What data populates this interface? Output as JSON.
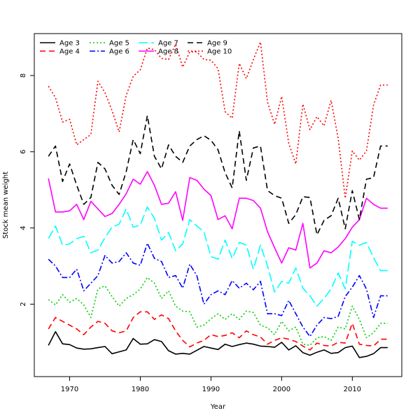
{
  "chart_data": {
    "type": "line",
    "title": "",
    "xlabel": "Year",
    "ylabel": "Stock mean weight",
    "xlim": [
      1965,
      2017
    ],
    "ylim": [
      0.1,
      9.1
    ],
    "x_ticks": [
      1970,
      1980,
      1990,
      2000,
      2010
    ],
    "y_ticks": [
      2,
      4,
      6,
      8
    ],
    "grid": false,
    "legend_position": "top-left",
    "x": [
      1967,
      1968,
      1969,
      1970,
      1971,
      1972,
      1973,
      1974,
      1975,
      1976,
      1977,
      1978,
      1979,
      1980,
      1981,
      1982,
      1983,
      1984,
      1985,
      1986,
      1987,
      1988,
      1989,
      1990,
      1991,
      1992,
      1993,
      1994,
      1995,
      1996,
      1997,
      1998,
      1999,
      2000,
      2001,
      2002,
      2003,
      2004,
      2005,
      2006,
      2007,
      2008,
      2009,
      2010,
      2011,
      2012,
      2013,
      2014,
      2015
    ],
    "series": [
      {
        "name": "Age 3",
        "color": "#000000",
        "dash": "solid",
        "values": [
          0.92,
          1.28,
          0.96,
          0.94,
          0.85,
          0.82,
          0.83,
          0.86,
          0.89,
          0.7,
          0.75,
          0.8,
          1.1,
          0.95,
          0.96,
          1.07,
          1.02,
          0.78,
          0.69,
          0.71,
          0.69,
          0.79,
          0.89,
          0.85,
          0.81,
          0.95,
          0.89,
          0.94,
          0.98,
          0.95,
          0.9,
          0.89,
          0.87,
          1.0,
          0.8,
          0.91,
          0.73,
          0.66,
          0.74,
          0.8,
          0.71,
          0.73,
          0.86,
          0.9,
          0.6,
          0.63,
          0.7,
          0.86,
          0.86
        ]
      },
      {
        "name": "Age 4",
        "color": "#ff0000",
        "dash": "dashed",
        "values": [
          1.35,
          1.65,
          1.55,
          1.45,
          1.35,
          1.2,
          1.4,
          1.55,
          1.5,
          1.3,
          1.25,
          1.3,
          1.65,
          1.8,
          1.8,
          1.6,
          1.72,
          1.62,
          1.3,
          1.05,
          0.88,
          0.98,
          1.05,
          1.2,
          1.15,
          1.18,
          1.25,
          1.12,
          1.3,
          1.2,
          1.14,
          0.95,
          1.05,
          1.12,
          1.08,
          1.02,
          0.9,
          0.8,
          0.98,
          0.92,
          0.9,
          1.0,
          0.98,
          1.5,
          0.95,
          0.92,
          0.9,
          1.08,
          1.08
        ]
      },
      {
        "name": "Age 5",
        "color": "#00cd00",
        "dash": "dotted",
        "values": [
          2.12,
          1.98,
          2.25,
          2.05,
          2.15,
          1.98,
          1.65,
          2.4,
          2.48,
          2.2,
          1.95,
          2.15,
          2.25,
          2.4,
          2.7,
          2.55,
          2.15,
          2.35,
          1.95,
          1.82,
          1.8,
          1.4,
          1.45,
          1.62,
          1.75,
          1.6,
          1.75,
          1.6,
          1.82,
          1.78,
          1.45,
          1.38,
          1.2,
          1.55,
          1.3,
          1.4,
          0.95,
          0.92,
          1.12,
          1.15,
          1.05,
          1.4,
          1.35,
          1.95,
          1.6,
          1.12,
          1.25,
          1.5,
          1.5
        ]
      },
      {
        "name": "Age 6",
        "color": "#0000ff",
        "dash": "dashdot",
        "values": [
          3.18,
          3.0,
          2.7,
          2.7,
          2.92,
          2.35,
          2.55,
          2.75,
          3.28,
          3.08,
          3.12,
          3.35,
          3.08,
          3.02,
          3.6,
          3.2,
          3.12,
          2.7,
          2.75,
          2.42,
          3.05,
          2.75,
          2.0,
          2.25,
          2.35,
          2.25,
          2.62,
          2.42,
          2.55,
          2.38,
          2.6,
          1.75,
          1.75,
          1.7,
          2.1,
          1.75,
          1.4,
          1.15,
          1.45,
          1.65,
          1.62,
          1.68,
          2.2,
          2.45,
          2.75,
          2.4,
          1.65,
          2.22,
          2.22
        ]
      },
      {
        "name": "Age 7",
        "color": "#00ffff",
        "dash": "longdash",
        "values": [
          3.72,
          4.05,
          3.55,
          3.58,
          3.72,
          3.78,
          3.35,
          3.42,
          3.75,
          4.02,
          4.1,
          4.5,
          4.02,
          4.08,
          4.55,
          4.25,
          3.68,
          3.88,
          3.4,
          3.58,
          4.22,
          4.05,
          3.9,
          3.25,
          3.18,
          3.68,
          3.2,
          3.62,
          3.55,
          2.92,
          3.55,
          3.0,
          2.32,
          2.6,
          2.55,
          2.95,
          2.42,
          2.22,
          1.95,
          2.15,
          2.4,
          2.82,
          2.4,
          3.65,
          3.55,
          3.62,
          3.22,
          2.88,
          2.88
        ]
      },
      {
        "name": "Age 8",
        "color": "#ff00ff",
        "dash": "solid",
        "values": [
          5.3,
          4.42,
          4.42,
          4.45,
          4.62,
          4.22,
          4.7,
          4.5,
          4.3,
          4.38,
          4.62,
          4.9,
          5.28,
          5.15,
          5.48,
          5.12,
          4.62,
          4.65,
          4.95,
          4.2,
          5.32,
          5.25,
          5.02,
          4.85,
          4.22,
          4.32,
          3.98,
          4.78,
          4.78,
          4.72,
          4.52,
          3.9,
          3.48,
          3.08,
          3.48,
          3.42,
          4.12,
          2.95,
          3.08,
          3.4,
          3.35,
          3.5,
          3.72,
          4.02,
          4.22,
          4.78,
          4.62,
          4.52,
          4.52
        ]
      },
      {
        "name": "Age 9",
        "color": "#000000",
        "dash": "dashed",
        "values": [
          5.88,
          6.15,
          5.22,
          5.68,
          5.12,
          4.62,
          4.8,
          5.72,
          5.55,
          5.12,
          4.88,
          5.48,
          6.32,
          5.95,
          6.95,
          5.88,
          5.55,
          6.18,
          5.88,
          5.72,
          6.15,
          6.32,
          6.42,
          6.3,
          6.05,
          5.45,
          5.05,
          6.55,
          5.25,
          6.1,
          6.15,
          4.98,
          4.85,
          4.78,
          4.12,
          4.35,
          4.82,
          4.8,
          3.82,
          4.2,
          4.32,
          4.78,
          3.98,
          4.98,
          4.22,
          5.28,
          5.32,
          6.15,
          6.15
        ]
      },
      {
        "name": "Age 10",
        "color": "#ff0000",
        "dash": "dotted",
        "values": [
          7.72,
          7.42,
          6.78,
          6.85,
          6.18,
          6.32,
          6.45,
          7.85,
          7.55,
          7.08,
          6.52,
          7.48,
          7.98,
          8.15,
          8.72,
          8.68,
          8.45,
          8.42,
          8.82,
          8.22,
          8.62,
          8.62,
          8.42,
          8.4,
          8.18,
          7.05,
          6.88,
          8.32,
          7.92,
          8.42,
          8.88,
          7.3,
          6.72,
          7.45,
          6.22,
          5.68,
          7.25,
          6.58,
          6.92,
          6.68,
          7.35,
          6.35,
          4.78,
          6.02,
          5.78,
          6.02,
          7.22,
          7.75,
          7.75
        ]
      }
    ]
  }
}
